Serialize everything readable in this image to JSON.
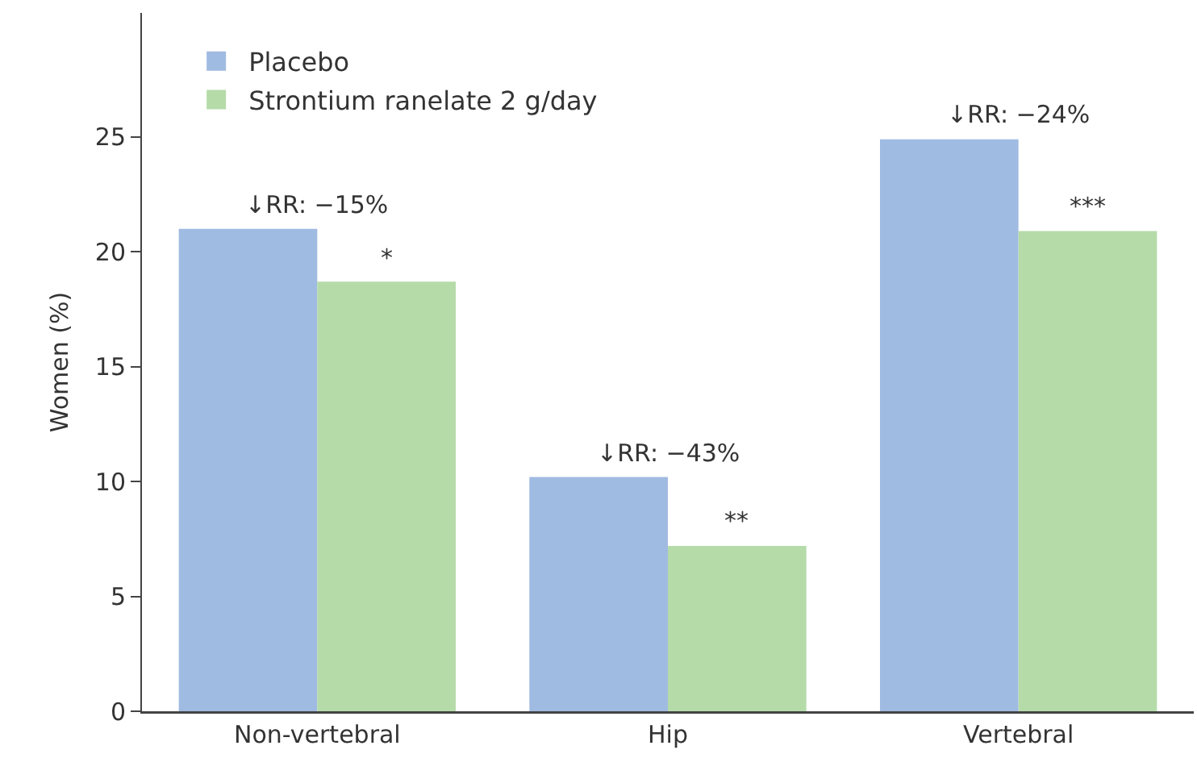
{
  "chart_data": {
    "type": "bar",
    "ylabel": "Women (%)",
    "categories": [
      "Non-vertebral",
      "Hip",
      "Vertebral"
    ],
    "series": [
      {
        "name": "Placebo",
        "color": "#a0bbe1",
        "values": [
          21.0,
          10.2,
          24.9
        ]
      },
      {
        "name": "Strontium ranelate 2 g/day",
        "color": "#b5dba9",
        "values": [
          18.7,
          7.2,
          20.9
        ]
      }
    ],
    "ylim": [
      0,
      30.4
    ],
    "yticks": [
      0,
      5,
      10,
      15,
      20,
      25
    ],
    "grid": false,
    "legend": "top left",
    "annotations": [
      {
        "text": "↓RR: −15%",
        "x": "Non-vertebral",
        "y": 21.0
      },
      {
        "text": "*",
        "x": "Non-vertebral",
        "y": 18.7
      },
      {
        "text": "↓RR: −43%",
        "x": "Hip",
        "y": 10.2
      },
      {
        "text": "**",
        "x": "Hip",
        "y": 7.2
      },
      {
        "text": "↓RR: −24%",
        "x": "Vertebral",
        "y": 24.9
      },
      {
        "text": "***",
        "x": "Vertebral",
        "y": 20.9
      }
    ]
  }
}
